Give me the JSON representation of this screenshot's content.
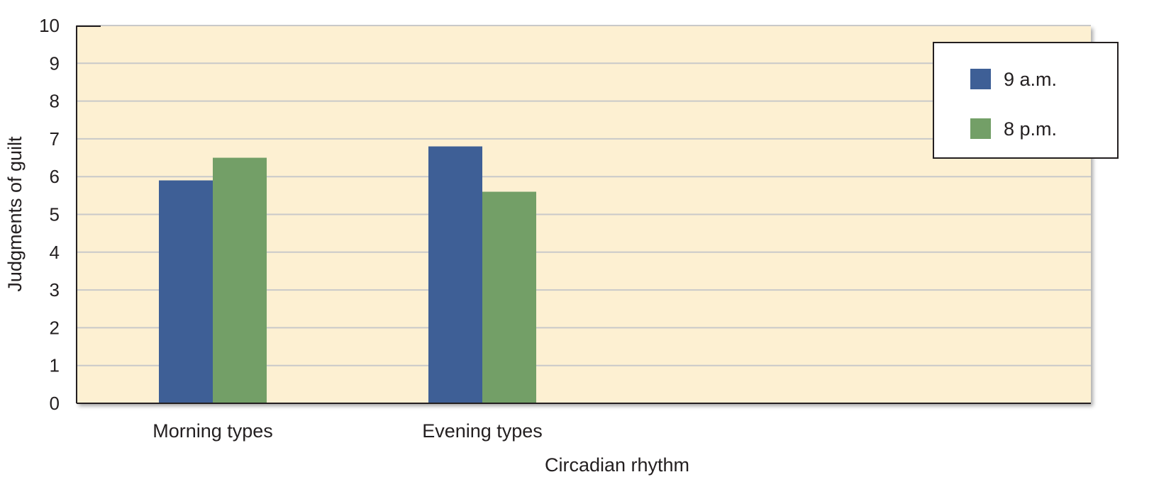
{
  "chart_data": {
    "type": "bar",
    "title": "",
    "xlabel": "Circadian rhythm",
    "ylabel": "Judgments of guilt",
    "categories": [
      "Morning types",
      "Evening types"
    ],
    "series": [
      {
        "name": "9 a.m.",
        "values": [
          5.9,
          6.8
        ],
        "color": "#3e5f96"
      },
      {
        "name": "8 p.m.",
        "values": [
          6.5,
          5.6
        ],
        "color": "#739f67"
      }
    ],
    "ylim": [
      0,
      10
    ],
    "yticks": [
      "0",
      "1",
      "2",
      "3",
      "4",
      "5",
      "6",
      "7",
      "8",
      "9",
      "10"
    ],
    "grid": true,
    "legend_position": "top-right",
    "plot_background": "#fdf0d2",
    "grid_color": "#c9c9c9"
  }
}
